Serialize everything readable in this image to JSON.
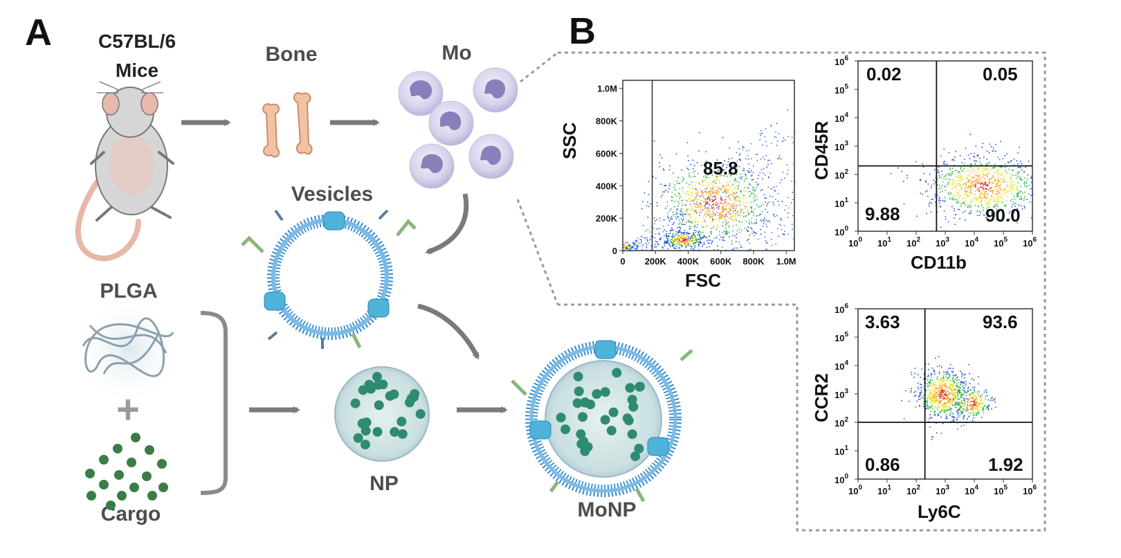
{
  "panels": {
    "a": "A",
    "b": "B"
  },
  "figure_a": {
    "mouse_label_line1": "C57BL/6",
    "mouse_label_line2": "Mice",
    "bone_label": "Bone",
    "mo_label": "Mo",
    "vesicles_label": "Vesicles",
    "plga_label": "PLGA",
    "plus_sign": "+",
    "cargo_label": "Cargo",
    "np_label": "NP",
    "monp_label": "MoNP",
    "icons": [
      "mouse-icon",
      "bone-icon",
      "monocyte-cell-icon",
      "vesicle-icon",
      "plga-polymer-icon",
      "cargo-dots-icon",
      "nanoparticle-icon",
      "monp-icon",
      "arrow-icon"
    ]
  },
  "chart_data": [
    {
      "type": "scatter",
      "name": "fsc-ssc",
      "xlabel": "FSC",
      "ylabel": "SSC",
      "xticks": [
        "0",
        "200K",
        "400K",
        "600K",
        "800K",
        "1.0M"
      ],
      "yticks": [
        "0",
        "200K",
        "400K",
        "600K",
        "800K",
        "1.0M"
      ],
      "xlim": [
        0,
        1050000
      ],
      "ylim": [
        0,
        1050000
      ],
      "gate_x": 180000,
      "gate_percent": "85.8",
      "clusters": [
        {
          "x": 560000,
          "y": 300000,
          "spread_x": 180000,
          "spread_y": 130000,
          "n": 900
        },
        {
          "x": 370000,
          "y": 70000,
          "spread_x": 60000,
          "spread_y": 25000,
          "n": 300
        },
        {
          "x": 20000,
          "y": 20000,
          "spread_x": 15000,
          "spread_y": 15000,
          "n": 80
        }
      ]
    },
    {
      "type": "scatter",
      "name": "cd11b-cd45r",
      "xlabel": "CD11b",
      "ylabel": "CD45R",
      "scale": "log",
      "xlim": [
        1,
        1000000
      ],
      "ylim": [
        1,
        1000000
      ],
      "quad_x": 500,
      "quad_y": 200,
      "quadrants": {
        "tl": "0.02",
        "tr": "0.05",
        "bl": "9.88",
        "br": "90.0"
      },
      "clusters": [
        {
          "x": 20000,
          "y": 40,
          "spread_x": 1.0,
          "spread_y": 0.55,
          "n": 900
        }
      ]
    },
    {
      "type": "scatter",
      "name": "ly6c-ccr2",
      "xlabel": "Ly6C",
      "ylabel": "CCR2",
      "scale": "log",
      "xlim": [
        1,
        1000000
      ],
      "ylim": [
        1,
        1000000
      ],
      "quad_x": 200,
      "quad_y": 100,
      "quadrants": {
        "tl": "3.63",
        "tr": "93.6",
        "bl": "0.86",
        "br": "1.92"
      },
      "clusters": [
        {
          "x": 800,
          "y": 1000,
          "spread_x": 0.45,
          "spread_y": 0.45,
          "n": 700
        },
        {
          "x": 8000,
          "y": 500,
          "spread_x": 0.35,
          "spread_y": 0.3,
          "n": 250
        }
      ]
    }
  ],
  "log_ticks": [
    {
      "base": "10",
      "exp": "0"
    },
    {
      "base": "10",
      "exp": "1"
    },
    {
      "base": "10",
      "exp": "2"
    },
    {
      "base": "10",
      "exp": "3"
    },
    {
      "base": "10",
      "exp": "4"
    },
    {
      "base": "10",
      "exp": "5"
    },
    {
      "base": "10",
      "exp": "6"
    }
  ],
  "colors": {
    "arrow": "#7a7a7a",
    "bone": "#f2c2a4",
    "bone_stroke": "#c98d6c",
    "cell_fill": "#d8d6ee",
    "cell_nucleus": "#7b6fa8",
    "membrane": "#3b8fd0",
    "protein": "#4fb3d9",
    "np_green": "#2e8b72",
    "cargo": "#3a7d47",
    "dotted_box": "#999999"
  }
}
